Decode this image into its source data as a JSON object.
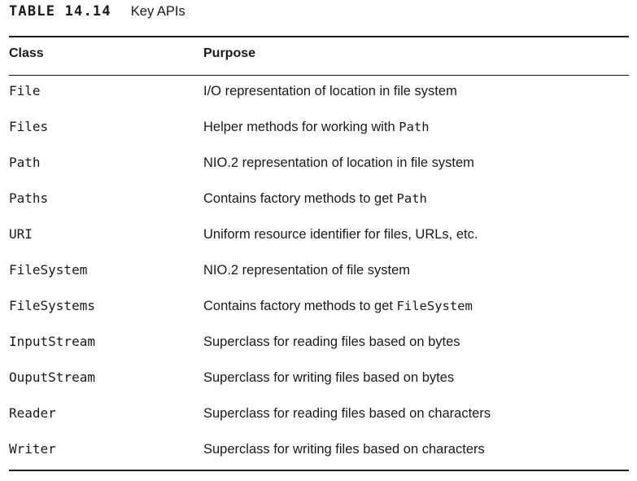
{
  "caption": {
    "label": "TABLE 14.14",
    "title": "Key APIs"
  },
  "table": {
    "headers": [
      "Class",
      "Purpose"
    ],
    "rows": [
      {
        "cls": "File",
        "purpose": "I/O representation of location in file system",
        "purpose_code": ""
      },
      {
        "cls": "Files",
        "purpose": "Helper methods for working with ",
        "purpose_code": "Path"
      },
      {
        "cls": "Path",
        "purpose": "NIO.2 representation of location in file system",
        "purpose_code": ""
      },
      {
        "cls": "Paths",
        "purpose": "Contains factory methods to get ",
        "purpose_code": "Path"
      },
      {
        "cls": "URI",
        "purpose": "Uniform resource identifier for files, URLs, etc.",
        "purpose_code": ""
      },
      {
        "cls": "FileSystem",
        "purpose": "NIO.2 representation of file system",
        "purpose_code": ""
      },
      {
        "cls": "FileSystems",
        "purpose": "Contains factory methods to get ",
        "purpose_code": "FileSystem"
      },
      {
        "cls": "InputStream",
        "purpose": "Superclass for reading files based on bytes",
        "purpose_code": ""
      },
      {
        "cls": "OuputStream",
        "purpose": "Superclass for writing files based on bytes",
        "purpose_code": ""
      },
      {
        "cls": "Reader",
        "purpose": "Superclass for reading files based on characters",
        "purpose_code": ""
      },
      {
        "cls": "Writer",
        "purpose": "Superclass for writing files based on characters",
        "purpose_code": ""
      }
    ]
  }
}
